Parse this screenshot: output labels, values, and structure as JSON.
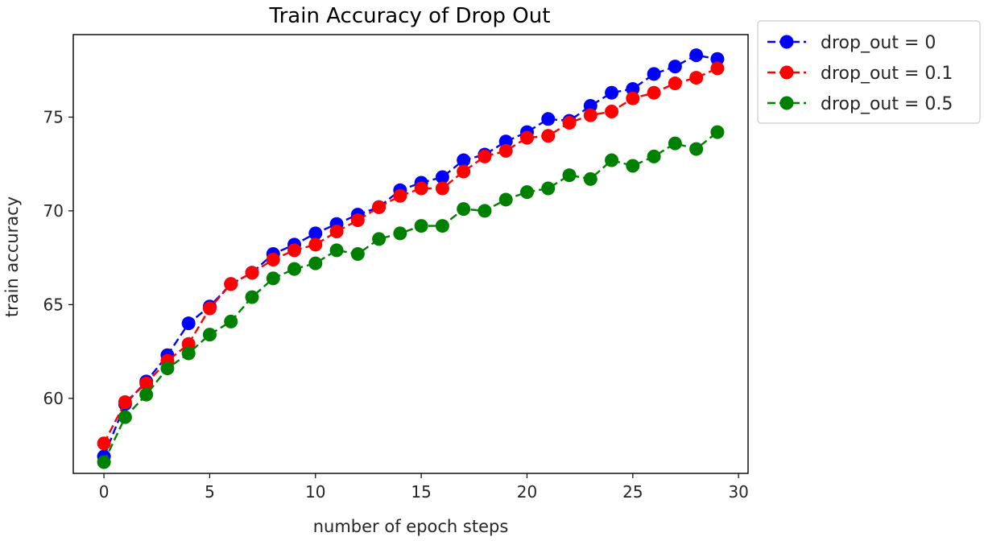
{
  "chart_data": {
    "type": "line",
    "title": "Train Accuracy of Drop Out",
    "xlabel": "number of epoch steps",
    "ylabel": "train accuracy",
    "xlim": [
      -1.45,
      30.45
    ],
    "ylim": [
      56.0,
      79.4
    ],
    "xticks": [
      0,
      5,
      10,
      15,
      20,
      25,
      30
    ],
    "yticks": [
      60,
      65,
      70,
      75
    ],
    "grid": false,
    "legend_position": "outside-top-right",
    "line_style": "dashed",
    "marker": "circle",
    "x": [
      0,
      1,
      2,
      3,
      4,
      5,
      6,
      7,
      8,
      9,
      10,
      11,
      12,
      13,
      14,
      15,
      16,
      17,
      18,
      19,
      20,
      21,
      22,
      23,
      24,
      25,
      26,
      27,
      28,
      29
    ],
    "series": [
      {
        "name": "drop_out = 0",
        "color": "#0000ff",
        "values": [
          56.9,
          59.7,
          60.9,
          62.3,
          64.0,
          64.9,
          66.1,
          66.7,
          67.7,
          68.2,
          68.8,
          69.3,
          69.8,
          70.2,
          71.1,
          71.5,
          71.8,
          72.7,
          73.0,
          73.7,
          74.2,
          74.9,
          74.8,
          75.6,
          76.3,
          76.5,
          77.3,
          77.7,
          78.3,
          78.1
        ]
      },
      {
        "name": "drop_out = 0.1",
        "color": "#ff0000",
        "values": [
          57.6,
          59.8,
          60.8,
          62.0,
          62.9,
          64.8,
          66.1,
          66.7,
          67.4,
          67.9,
          68.2,
          68.9,
          69.5,
          70.2,
          70.8,
          71.2,
          71.2,
          72.1,
          72.9,
          73.2,
          73.9,
          74.0,
          74.7,
          75.1,
          75.3,
          76.0,
          76.3,
          76.8,
          77.1,
          77.6
        ]
      },
      {
        "name": "drop_out = 0.5",
        "color": "#008000",
        "values": [
          56.6,
          59.0,
          60.2,
          61.6,
          62.4,
          63.4,
          64.1,
          65.4,
          66.4,
          66.9,
          67.2,
          67.9,
          67.7,
          68.5,
          68.8,
          69.2,
          69.2,
          70.1,
          70.0,
          70.6,
          71.0,
          71.2,
          71.9,
          71.7,
          72.7,
          72.4,
          72.9,
          73.6,
          73.3,
          74.2
        ]
      }
    ]
  }
}
